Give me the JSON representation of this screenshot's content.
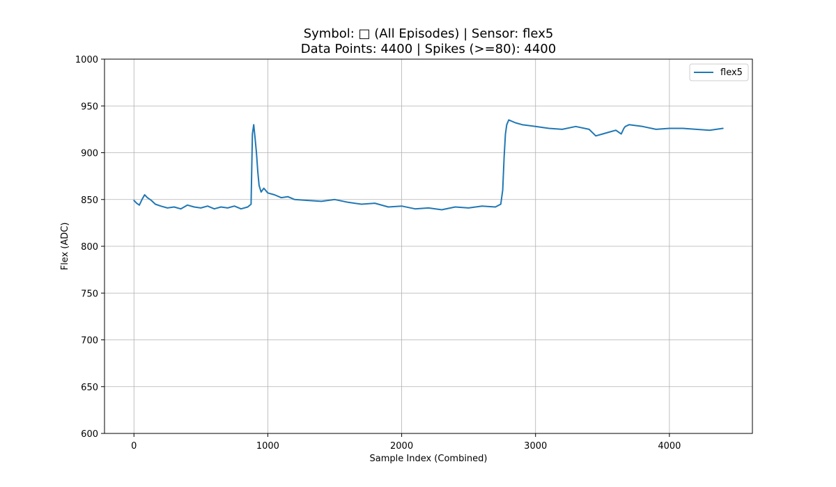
{
  "chart_data": {
    "type": "line",
    "title": "Symbol: □ (All Episodes) | Sensor: flex5",
    "subtitle": "Data Points: 4400 | Spikes (>=80): 4400",
    "xlabel": "Sample Index (Combined)",
    "ylabel": "Flex (ADC)",
    "xlim": [
      -220,
      4620
    ],
    "ylim": [
      600,
      1000
    ],
    "x_ticks": [
      0,
      1000,
      2000,
      3000,
      4000
    ],
    "y_ticks": [
      600,
      650,
      700,
      750,
      800,
      850,
      900,
      950,
      1000
    ],
    "grid": true,
    "legend_position": "top-right",
    "series": [
      {
        "name": "flex5",
        "color": "#1f77b4",
        "x": [
          0,
          20,
          40,
          60,
          80,
          100,
          130,
          160,
          200,
          250,
          300,
          350,
          400,
          450,
          500,
          550,
          600,
          650,
          700,
          750,
          800,
          850,
          875,
          885,
          895,
          905,
          915,
          925,
          935,
          950,
          970,
          1000,
          1050,
          1100,
          1150,
          1200,
          1300,
          1400,
          1500,
          1600,
          1700,
          1800,
          1900,
          2000,
          2100,
          2200,
          2300,
          2400,
          2500,
          2600,
          2700,
          2740,
          2755,
          2765,
          2775,
          2785,
          2800,
          2850,
          2900,
          3000,
          3100,
          3200,
          3300,
          3400,
          3450,
          3500,
          3550,
          3600,
          3640,
          3660,
          3670,
          3700,
          3800,
          3900,
          4000,
          4100,
          4200,
          4300,
          4400
        ],
        "y": [
          849,
          846,
          844,
          850,
          855,
          852,
          849,
          845,
          843,
          841,
          842,
          840,
          844,
          842,
          841,
          843,
          840,
          842,
          841,
          843,
          840,
          842,
          845,
          920,
          930,
          915,
          900,
          880,
          865,
          858,
          862,
          857,
          855,
          852,
          853,
          850,
          849,
          848,
          850,
          847,
          845,
          846,
          842,
          843,
          840,
          841,
          839,
          842,
          841,
          843,
          842,
          845,
          860,
          895,
          920,
          930,
          935,
          932,
          930,
          928,
          926,
          925,
          928,
          925,
          918,
          920,
          922,
          924,
          920,
          926,
          928,
          930,
          928,
          925,
          926,
          926,
          925,
          924,
          926
        ]
      }
    ]
  }
}
